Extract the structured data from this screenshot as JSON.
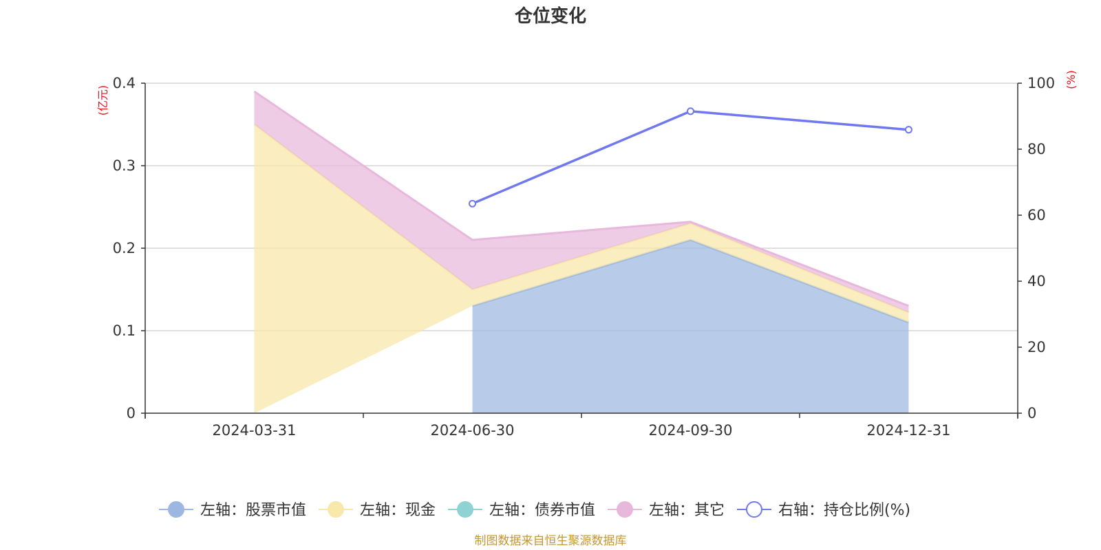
{
  "chart_data": {
    "type": "area",
    "title": "仓位变化",
    "categories": [
      "2024-03-31",
      "2024-06-30",
      "2024-09-30",
      "2024-12-31"
    ],
    "left_axis": {
      "unit": "(亿元)",
      "ylim": [
        0,
        0.4
      ],
      "ticks": [
        "0",
        "0.1",
        "0.2",
        "0.3",
        "0.4"
      ]
    },
    "right_axis": {
      "unit": "(%)",
      "ylim": [
        0,
        100
      ],
      "ticks": [
        "0",
        "20",
        "40",
        "60",
        "80",
        "100"
      ]
    },
    "stacked": true,
    "series": [
      {
        "name": "左轴：股票市值",
        "axis": "left",
        "type": "area",
        "color": "#9db8e0",
        "values": [
          null,
          0.13,
          0.21,
          0.11
        ]
      },
      {
        "name": "左轴：现金",
        "axis": "left",
        "type": "area",
        "color": "#f8e8a9",
        "values": [
          0.35,
          0.02,
          0.02,
          0.012
        ]
      },
      {
        "name": "左轴：债券市值",
        "axis": "left",
        "type": "area",
        "color": "#8ed2d4",
        "values": [
          0,
          0,
          0,
          0
        ]
      },
      {
        "name": "左轴：其它",
        "axis": "left",
        "type": "area",
        "color": "#e8b8dc",
        "values": [
          0.04,
          0.06,
          0.002,
          0.008
        ]
      },
      {
        "name": "右轴：持仓比例(%)",
        "axis": "right",
        "type": "line",
        "color": "#7078ee",
        "values": [
          null,
          63.5,
          91.5,
          85.9
        ]
      }
    ],
    "grid": true,
    "legend_position": "bottom",
    "source_note": "制图数据来自恒生聚源数据库"
  }
}
